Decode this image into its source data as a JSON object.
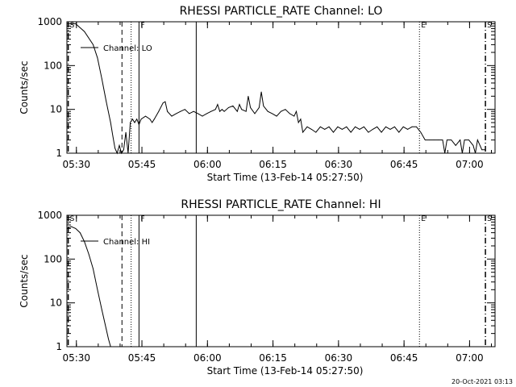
{
  "footer": {
    "timestamp": "20-Oct-2021 03:13"
  },
  "chart_data": [
    {
      "type": "line",
      "title": "RHESSI PARTICLE_RATE Channel: LO",
      "xlabel": "Start Time (13-Feb-14 05:27:50)",
      "ylabel": "Counts/sec",
      "legend": {
        "label": "Channel: LO",
        "position": "top-left"
      },
      "yscale": "log",
      "ylim": [
        1,
        1000
      ],
      "xlim_minutes": [
        0,
        98
      ],
      "x_ticks": [
        {
          "minute": 2.17,
          "label": "05:30"
        },
        {
          "minute": 17.17,
          "label": "05:45"
        },
        {
          "minute": 32.17,
          "label": "06:00"
        },
        {
          "minute": 47.17,
          "label": "06:15"
        },
        {
          "minute": 62.17,
          "label": "06:30"
        },
        {
          "minute": 77.17,
          "label": "06:45"
        },
        {
          "minute": 92.17,
          "label": "07:00"
        }
      ],
      "y_ticks": [
        {
          "value": 1,
          "label": "1"
        },
        {
          "value": 10,
          "label": "10"
        },
        {
          "value": 100,
          "label": "100"
        },
        {
          "value": 1000,
          "label": "1000"
        }
      ],
      "markers": [
        {
          "minute": 0.3,
          "style": "dash-dot",
          "label": "S"
        },
        {
          "minute": 12.6,
          "style": "dashed",
          "label": ""
        },
        {
          "minute": 14.7,
          "style": "dotted",
          "label": ""
        },
        {
          "minute": 16.5,
          "style": "solid",
          "label": "F"
        },
        {
          "minute": 29.6,
          "style": "solid",
          "label": ""
        },
        {
          "minute": 80.7,
          "style": "dotted",
          "label": "E"
        },
        {
          "minute": 95.8,
          "style": "dash-dot",
          "label": "S"
        }
      ],
      "series": [
        {
          "name": "Channel: LO",
          "x_minutes": [
            0,
            2,
            4,
            6,
            7,
            8,
            9,
            10,
            10.5,
            11,
            11.5,
            12,
            12.5,
            13,
            13.5,
            14,
            14.5,
            15,
            15.5,
            16,
            16.5,
            17,
            18,
            19,
            19.5,
            20,
            21,
            22,
            22.5,
            23,
            24,
            25,
            26,
            27,
            28,
            29,
            30,
            31,
            32,
            33,
            34,
            34.5,
            35,
            35.5,
            36,
            37,
            38,
            39,
            39.5,
            40,
            41,
            41.5,
            42,
            43,
            44,
            44.5,
            45,
            46,
            47,
            48,
            49,
            50,
            51,
            52,
            52.5,
            53,
            53.5,
            54,
            55,
            56,
            57,
            58,
            59,
            60,
            61,
            62,
            63,
            64,
            65,
            66,
            67,
            68,
            69,
            70,
            71,
            72,
            73,
            74,
            75,
            76,
            77,
            78,
            79,
            80,
            81,
            82,
            83,
            84,
            85,
            86,
            86.5,
            87,
            88,
            89,
            90,
            90.5,
            91,
            92,
            93,
            93.5,
            94,
            95,
            95.8
          ],
          "values": [
            900,
            900,
            600,
            300,
            150,
            50,
            15,
            5,
            2.5,
            1.3,
            1,
            1.5,
            1,
            1.2,
            3,
            1,
            5,
            6,
            5,
            6,
            4.5,
            6,
            7,
            6,
            5,
            6,
            9,
            14,
            15,
            9,
            7,
            8,
            9,
            10,
            8,
            9,
            8,
            7,
            8,
            9,
            10,
            13,
            9,
            10,
            9,
            11,
            12,
            9,
            13,
            10,
            9,
            20,
            11,
            8,
            11,
            25,
            12,
            9,
            8,
            7,
            9,
            10,
            8,
            7,
            9,
            5,
            6,
            3,
            4,
            3.5,
            3,
            4,
            3.5,
            4,
            3,
            4,
            3.5,
            4,
            3,
            4,
            3.5,
            4,
            3,
            3.5,
            4,
            3,
            4,
            3.5,
            4,
            3,
            4,
            3.5,
            4,
            4,
            3,
            2,
            2,
            2,
            2,
            2,
            1,
            2,
            2,
            1.5,
            2,
            1,
            2,
            2,
            1.5,
            1,
            2,
            1.2,
            1.2
          ]
        }
      ]
    },
    {
      "type": "line",
      "title": "RHESSI PARTICLE_RATE Channel: HI",
      "xlabel": "Start Time (13-Feb-14 05:27:50)",
      "ylabel": "Counts/sec",
      "legend": {
        "label": "Channel: HI",
        "position": "top-left"
      },
      "yscale": "log",
      "ylim": [
        1,
        1000
      ],
      "xlim_minutes": [
        0,
        98
      ],
      "x_ticks": [
        {
          "minute": 2.17,
          "label": "05:30"
        },
        {
          "minute": 17.17,
          "label": "05:45"
        },
        {
          "minute": 32.17,
          "label": "06:00"
        },
        {
          "minute": 47.17,
          "label": "06:15"
        },
        {
          "minute": 62.17,
          "label": "06:30"
        },
        {
          "minute": 77.17,
          "label": "06:45"
        },
        {
          "minute": 92.17,
          "label": "07:00"
        }
      ],
      "y_ticks": [
        {
          "value": 1,
          "label": "1"
        },
        {
          "value": 10,
          "label": "10"
        },
        {
          "value": 100,
          "label": "100"
        },
        {
          "value": 1000,
          "label": "1000"
        }
      ],
      "markers": [
        {
          "minute": 0.3,
          "style": "dash-dot",
          "label": "S"
        },
        {
          "minute": 12.6,
          "style": "dashed",
          "label": ""
        },
        {
          "minute": 14.7,
          "style": "dotted",
          "label": ""
        },
        {
          "minute": 16.5,
          "style": "solid",
          "label": "F"
        },
        {
          "minute": 29.6,
          "style": "solid",
          "label": ""
        },
        {
          "minute": 80.7,
          "style": "dotted",
          "label": "E"
        },
        {
          "minute": 95.8,
          "style": "dash-dot",
          "label": "S"
        }
      ],
      "series": [
        {
          "name": "Channel: HI",
          "x_minutes": [
            0,
            1,
            2,
            3,
            4,
            5,
            6,
            7,
            8,
            9,
            9.5,
            10
          ],
          "values": [
            500,
            550,
            500,
            400,
            250,
            130,
            60,
            20,
            7,
            2.5,
            1.5,
            1
          ]
        }
      ]
    }
  ]
}
